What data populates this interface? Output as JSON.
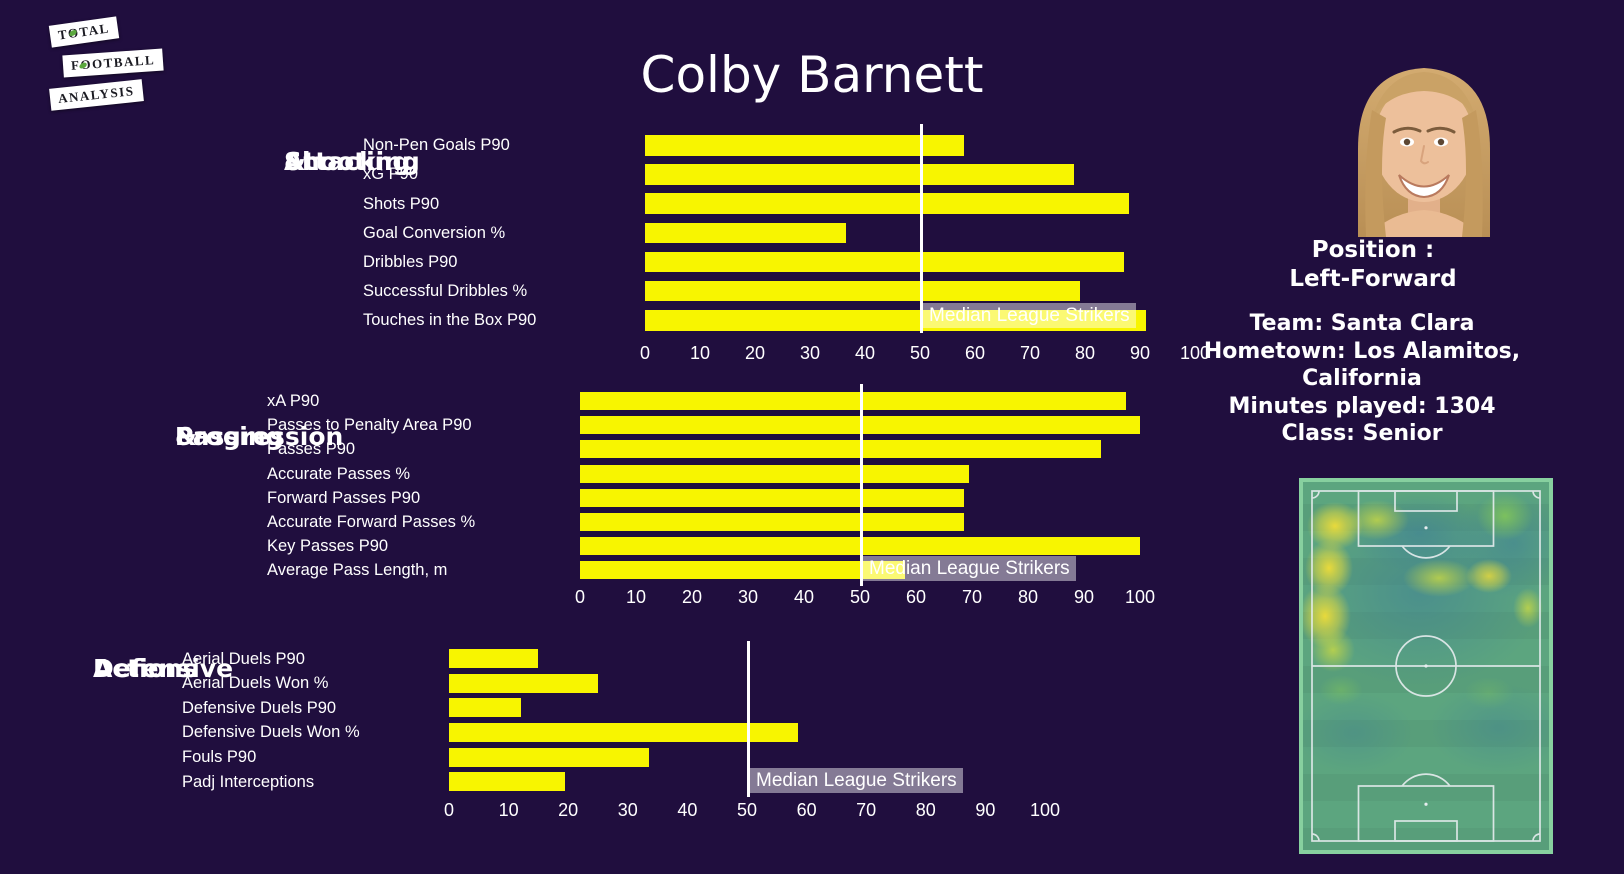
{
  "title": "Colby Barnett",
  "logo": {
    "words": [
      "TOTAL",
      "FOOTBALL",
      "ANALYSIS"
    ]
  },
  "player": {
    "position_label": "Position :",
    "position": "Left-Forward",
    "team": "Team: Santa Clara",
    "hometown": "Hometown: Los Alamitos,",
    "hometown2": "California",
    "minutes": "Minutes played: 1304",
    "class": "Class: Senior"
  },
  "colors": {
    "background": "#200e3e",
    "bar_yellow": "#f8f500",
    "median_line": "#ffffff",
    "text": "#ffffff"
  },
  "chart_data": [
    {
      "type": "bar",
      "orientation": "horizontal",
      "section_title": [
        "Attacking",
        "&",
        "Shooting"
      ],
      "categories": [
        "Non-Pen Goals P90",
        "xG P90",
        "Shots P90",
        "Goal Conversion %",
        "Dribbles P90",
        "Successful Dribbles %",
        "Touches in the Box P90"
      ],
      "values": [
        58,
        78,
        88,
        36.5,
        87,
        79,
        91
      ],
      "xlim": [
        0,
        105
      ],
      "ticks": [
        0,
        10,
        20,
        30,
        40,
        50,
        60,
        70,
        80,
        90,
        100
      ],
      "median": 50,
      "median_label": "Median League Strikers",
      "grid": false,
      "legend": "none"
    },
    {
      "type": "bar",
      "orientation": "horizontal",
      "section_title": [
        "Passing",
        "&",
        "Progression"
      ],
      "categories": [
        "xA P90",
        "Passes to Penalty Area P90",
        "Passes P90",
        "Accurate Passes %",
        "Forward Passes P90",
        "Accurate Forward Passes %",
        "Key Passes P90",
        "Average Pass Length, m"
      ],
      "values": [
        97.5,
        100,
        93,
        69.5,
        68.5,
        68.5,
        100,
        58
      ],
      "xlim": [
        0,
        105
      ],
      "ticks": [
        0,
        10,
        20,
        30,
        40,
        50,
        60,
        70,
        80,
        90,
        100
      ],
      "median": 50,
      "median_label": "Median League Strikers",
      "grid": false,
      "legend": "none"
    },
    {
      "type": "bar",
      "orientation": "horizontal",
      "section_title": [
        "Defensive",
        "Actions"
      ],
      "categories": [
        "Aerial Duels P90",
        "Aerial Duels Won %",
        "Defensive Duels P90",
        "Defensive Duels Won %",
        "Fouls P90",
        "Padj Interceptions"
      ],
      "values": [
        15,
        25,
        12,
        58.5,
        33.5,
        19.5
      ],
      "xlim": [
        0,
        105
      ],
      "ticks": [
        0,
        10,
        20,
        30,
        40,
        50,
        60,
        70,
        80,
        90,
        100
      ],
      "median": 50,
      "median_label": "Median League Strikers",
      "grid": false,
      "legend": "none"
    }
  ]
}
